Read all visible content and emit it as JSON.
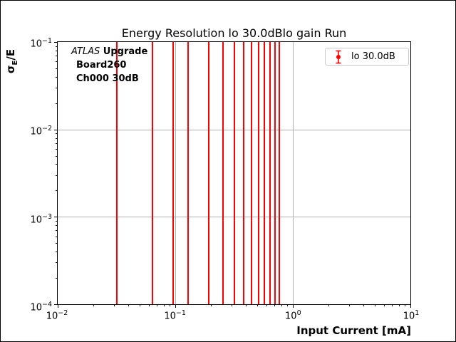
{
  "title": "Energy Resolution lo 30.0dBlo gain Run",
  "axes": {
    "xlabel": "Input Current [mA]",
    "ylabel_sigma": "σ",
    "ylabel_sub": "E",
    "ylabel_rest": "/E"
  },
  "annotation": {
    "experiment": "ATLAS",
    "experiment_suffix": " Upgrade",
    "board": "Board260",
    "channel": "Ch000 30dB"
  },
  "legend": {
    "label": "lo 30.0dB",
    "marker_color": "#ff0000"
  },
  "chart_data": {
    "type": "errorbar",
    "title": "Energy Resolution lo 30.0dBlo gain Run",
    "xlabel": "Input Current [mA]",
    "ylabel": "σ_E/E",
    "xscale": "log",
    "yscale": "log",
    "xlim": [
      0.01,
      10
    ],
    "ylim": [
      0.0001,
      0.1
    ],
    "x_major_ticks": [
      0.01,
      0.1,
      1,
      10
    ],
    "x_tick_exponents": [
      -2,
      -1,
      0,
      1
    ],
    "y_major_ticks": [
      0.1,
      0.01,
      0.001,
      0.0001
    ],
    "y_tick_exponents": [
      -1,
      -2,
      -3,
      -4
    ],
    "grid": true,
    "grid_color": "#b0b0b0",
    "legend_position": "upper right",
    "series": [
      {
        "name": "lo 30.0dB",
        "color": "#ff0000",
        "x": [
          0.032,
          0.064,
          0.096,
          0.128,
          0.192,
          0.256,
          0.32,
          0.384,
          0.448,
          0.512,
          0.576,
          0.64,
          0.704,
          0.768
        ],
        "note": "error bars exceed the visible y-range and render as full-height vertical red lines clipped at 1e-4 and 1e-1"
      }
    ]
  }
}
